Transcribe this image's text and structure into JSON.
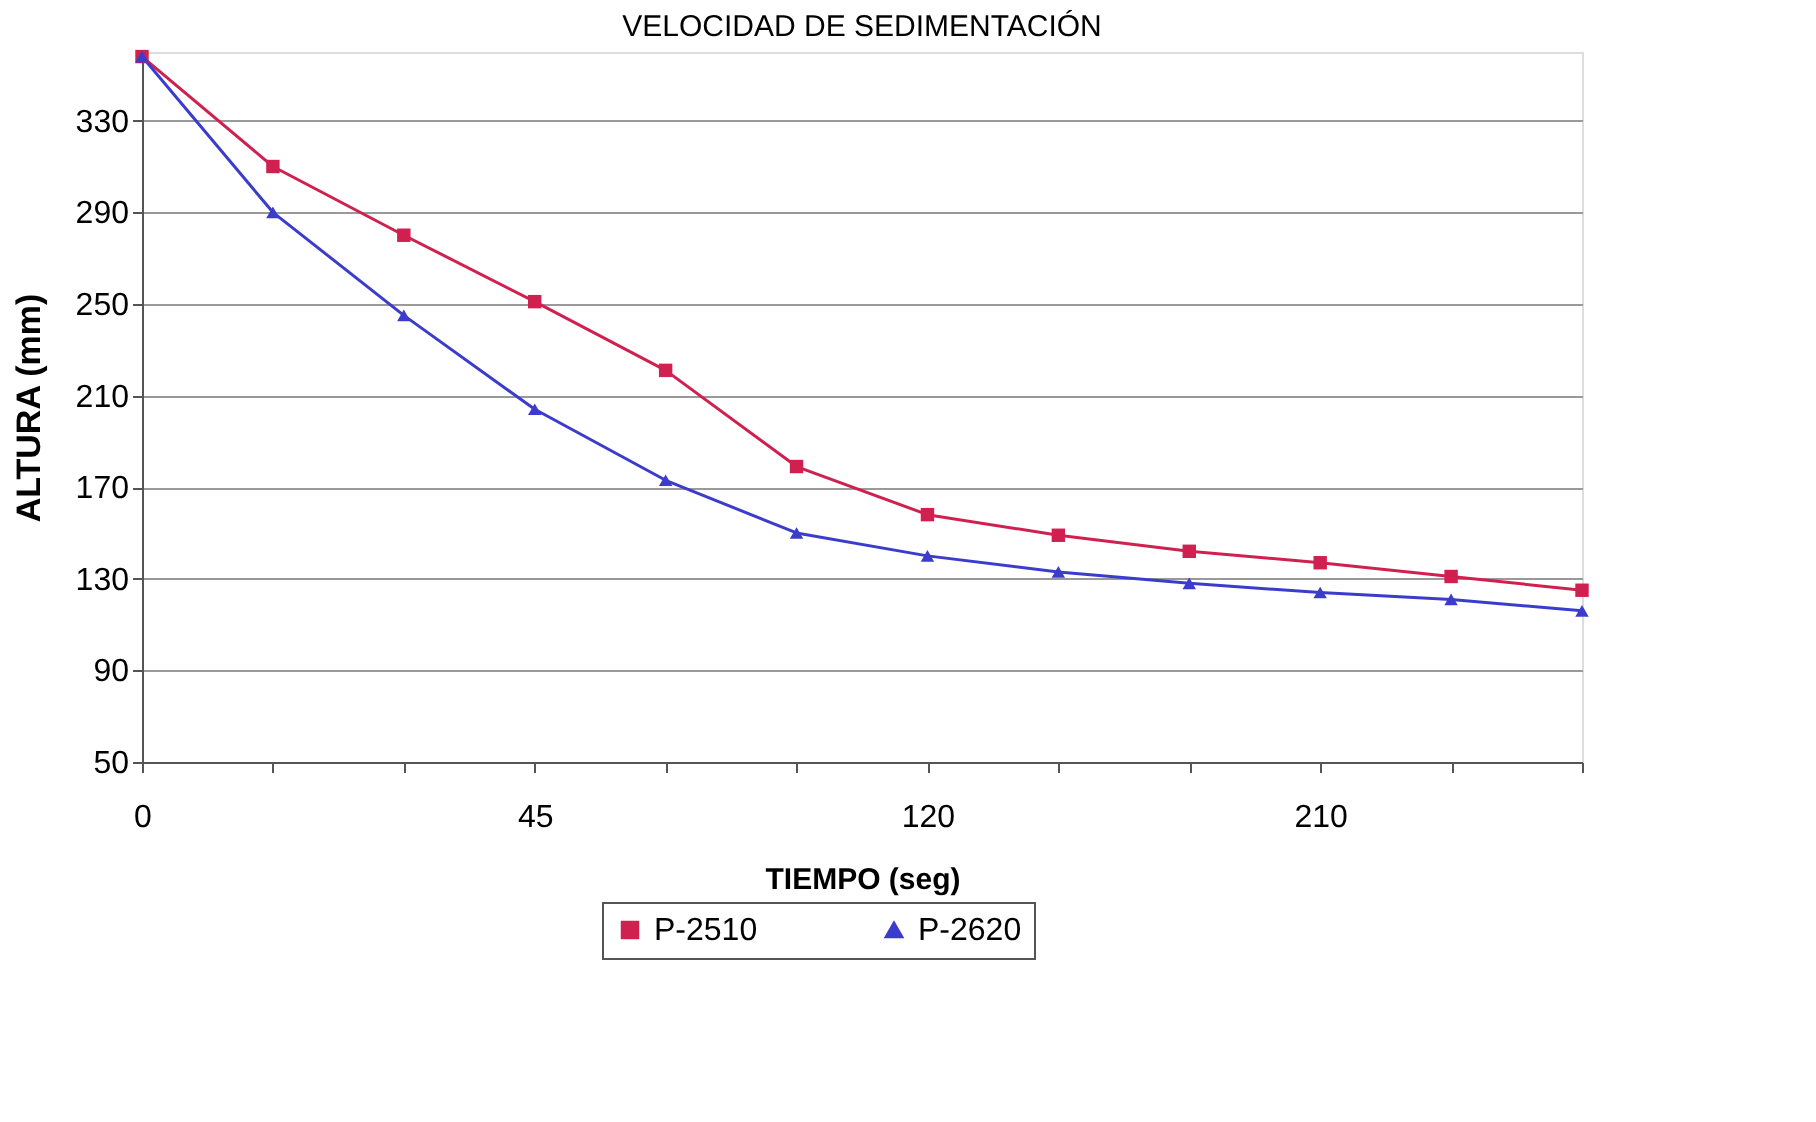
{
  "chart_data": {
    "type": "line",
    "title": "VELOCIDAD DE SEDIMENTACIÓN",
    "xlabel": "TIEMPO (seg)",
    "ylabel": "ALTURA (mm)",
    "categories": [
      "0",
      null,
      null,
      "45",
      null,
      null,
      "120",
      null,
      null,
      "210",
      null,
      null
    ],
    "series": [
      {
        "name": "P-2510",
        "color": "#d02050",
        "marker": "square",
        "values": [
          358,
          310,
          280,
          251,
          221,
          179,
          158,
          149,
          142,
          137,
          131,
          125
        ]
      },
      {
        "name": "P-2620",
        "color": "#3c3ccc",
        "marker": "triangle",
        "values": [
          358,
          290,
          245,
          204,
          173,
          150,
          140,
          133,
          128,
          124,
          121,
          116
        ]
      }
    ],
    "ylim": [
      50,
      360
    ],
    "yticks": [
      50,
      90,
      130,
      170,
      210,
      250,
      290,
      330
    ],
    "grid": "y",
    "legend": "bottom",
    "line_style": "solid"
  }
}
